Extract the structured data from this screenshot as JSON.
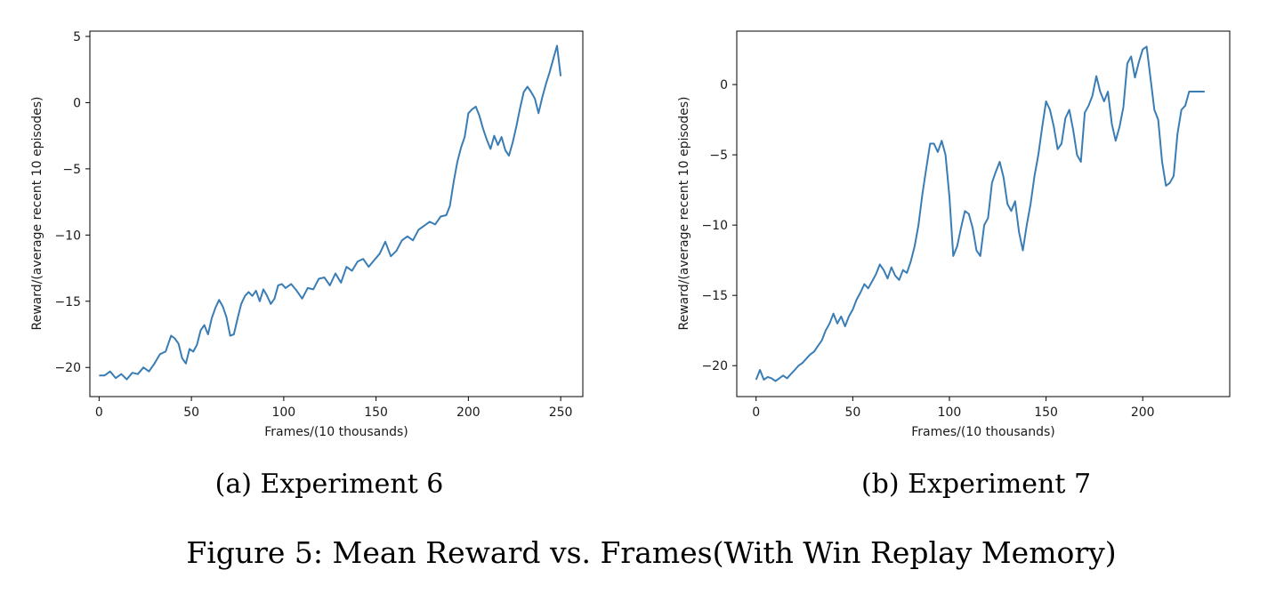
{
  "figure_caption": "Figure 5: Mean Reward vs. Frames(With Win Replay Memory)",
  "line_color": "#3a7db5",
  "chart_data": [
    {
      "type": "line",
      "caption": "(a) Experiment 6",
      "xlabel": "Frames/(10 thousands)",
      "ylabel": "Reward/(average recent 10 episodes)",
      "xlim": [
        -5,
        262
      ],
      "ylim": [
        -22.2,
        5.4
      ],
      "xticks": [
        0,
        50,
        100,
        150,
        200,
        250
      ],
      "yticks": [
        5,
        0,
        -5,
        -10,
        -15,
        -20
      ],
      "ytick_labels": [
        "5",
        "0",
        "−5",
        "−10",
        "−15",
        "−20"
      ],
      "xtick_labels": [
        "0",
        "50",
        "100",
        "150",
        "200",
        "250"
      ],
      "grid": false,
      "series": [
        {
          "x": [
            0,
            3,
            6,
            9,
            12,
            15,
            18,
            21,
            24,
            27,
            30,
            33,
            36,
            39,
            41,
            43,
            45,
            47,
            49,
            51,
            53,
            55,
            57,
            59,
            61,
            63,
            65,
            67,
            69,
            71,
            73,
            75,
            77,
            79,
            81,
            83,
            85,
            87,
            89,
            91,
            93,
            95,
            97,
            99,
            101,
            104,
            107,
            110,
            113,
            116,
            119,
            122,
            125,
            128,
            131,
            134,
            137,
            140,
            143,
            146,
            149,
            152,
            155,
            158,
            161,
            164,
            167,
            170,
            173,
            176,
            179,
            182,
            185,
            188,
            190,
            192,
            194,
            196,
            198,
            200,
            202,
            204,
            206,
            208,
            210,
            212,
            214,
            216,
            218,
            220,
            222,
            224,
            226,
            228,
            230,
            232,
            234,
            236,
            238,
            240,
            242,
            244,
            246,
            248,
            250
          ],
          "y": [
            -20.6,
            -20.6,
            -20.3,
            -20.8,
            -20.5,
            -20.9,
            -20.4,
            -20.5,
            -20.0,
            -20.3,
            -19.7,
            -19.0,
            -18.8,
            -17.6,
            -17.8,
            -18.2,
            -19.3,
            -19.7,
            -18.6,
            -18.8,
            -18.3,
            -17.2,
            -16.8,
            -17.5,
            -16.3,
            -15.5,
            -14.9,
            -15.4,
            -16.2,
            -17.6,
            -17.5,
            -16.3,
            -15.2,
            -14.6,
            -14.3,
            -14.6,
            -14.2,
            -15.0,
            -14.1,
            -14.6,
            -15.2,
            -14.8,
            -13.8,
            -13.7,
            -14.0,
            -13.7,
            -14.2,
            -14.8,
            -14.0,
            -14.1,
            -13.3,
            -13.2,
            -13.8,
            -12.9,
            -13.6,
            -12.4,
            -12.7,
            -12.0,
            -11.8,
            -12.4,
            -11.9,
            -11.4,
            -10.5,
            -11.6,
            -11.2,
            -10.4,
            -10.1,
            -10.4,
            -9.6,
            -9.3,
            -9.0,
            -9.2,
            -8.6,
            -8.5,
            -7.8,
            -6.0,
            -4.5,
            -3.4,
            -2.6,
            -0.8,
            -0.5,
            -0.3,
            -1.0,
            -2.0,
            -2.8,
            -3.5,
            -2.5,
            -3.2,
            -2.6,
            -3.6,
            -4.0,
            -3.0,
            -1.8,
            -0.4,
            0.8,
            1.2,
            0.8,
            0.3,
            -0.8,
            0.4,
            1.4,
            2.3,
            3.3,
            4.3,
            2.0
          ]
        }
      ]
    },
    {
      "type": "line",
      "caption": "(b) Experiment 7",
      "xlabel": "Frames/(10 thousands)",
      "ylabel": "Reward/(average recent 10 episodes)",
      "xlim": [
        -10,
        245
      ],
      "ylim": [
        -22.2,
        3.8
      ],
      "xticks": [
        0,
        50,
        100,
        150,
        200
      ],
      "yticks": [
        0,
        -5,
        -10,
        -15,
        -20
      ],
      "ytick_labels": [
        "0",
        "−5",
        "−10",
        "−15",
        "−20"
      ],
      "xtick_labels": [
        "0",
        "50",
        "100",
        "150",
        "200"
      ],
      "grid": false,
      "series": [
        {
          "x": [
            0,
            2,
            4,
            6,
            8,
            10,
            12,
            14,
            16,
            18,
            20,
            22,
            24,
            26,
            28,
            30,
            32,
            34,
            36,
            38,
            40,
            42,
            44,
            46,
            48,
            50,
            52,
            54,
            56,
            58,
            60,
            62,
            64,
            66,
            68,
            70,
            72,
            74,
            76,
            78,
            80,
            82,
            84,
            86,
            88,
            90,
            92,
            94,
            96,
            98,
            100,
            102,
            104,
            106,
            108,
            110,
            112,
            114,
            116,
            118,
            120,
            122,
            124,
            126,
            128,
            130,
            132,
            134,
            136,
            138,
            140,
            142,
            144,
            146,
            148,
            150,
            152,
            154,
            156,
            158,
            160,
            162,
            164,
            166,
            168,
            170,
            172,
            174,
            176,
            178,
            180,
            182,
            184,
            186,
            188,
            190,
            192,
            194,
            196,
            198,
            200,
            202,
            204,
            206,
            208,
            210,
            212,
            214,
            216,
            218,
            220,
            222,
            224,
            226,
            228,
            230,
            232
          ],
          "y": [
            -21.0,
            -20.3,
            -21.0,
            -20.8,
            -20.9,
            -21.1,
            -20.9,
            -20.7,
            -20.9,
            -20.6,
            -20.3,
            -20.0,
            -19.8,
            -19.5,
            -19.2,
            -19.0,
            -18.6,
            -18.2,
            -17.5,
            -17.0,
            -16.3,
            -17.0,
            -16.5,
            -17.2,
            -16.5,
            -16.0,
            -15.3,
            -14.8,
            -14.2,
            -14.5,
            -14.0,
            -13.5,
            -12.8,
            -13.2,
            -13.8,
            -13.0,
            -13.6,
            -13.9,
            -13.2,
            -13.4,
            -12.6,
            -11.5,
            -10.0,
            -7.8,
            -6.0,
            -4.2,
            -4.2,
            -4.8,
            -4.0,
            -5.0,
            -8.0,
            -12.2,
            -11.5,
            -10.2,
            -9.0,
            -9.2,
            -10.2,
            -11.8,
            -12.2,
            -10.0,
            -9.5,
            -7.0,
            -6.2,
            -5.5,
            -6.6,
            -8.5,
            -9.0,
            -8.3,
            -10.5,
            -11.8,
            -10.0,
            -8.5,
            -6.5,
            -5.0,
            -3.0,
            -1.2,
            -1.8,
            -3.0,
            -4.6,
            -4.2,
            -2.4,
            -1.8,
            -3.2,
            -5.0,
            -5.5,
            -2.0,
            -1.5,
            -0.8,
            0.6,
            -0.5,
            -1.2,
            -0.5,
            -2.8,
            -4.0,
            -3.0,
            -1.6,
            1.5,
            2.0,
            0.5,
            1.6,
            2.5,
            2.7,
            0.5,
            -1.8,
            -2.5,
            -5.5,
            -7.2,
            -7.0,
            -6.5,
            -3.5,
            -1.8,
            -1.5,
            -0.5,
            -0.5,
            -0.5,
            -0.5,
            -0.5
          ]
        }
      ]
    }
  ]
}
